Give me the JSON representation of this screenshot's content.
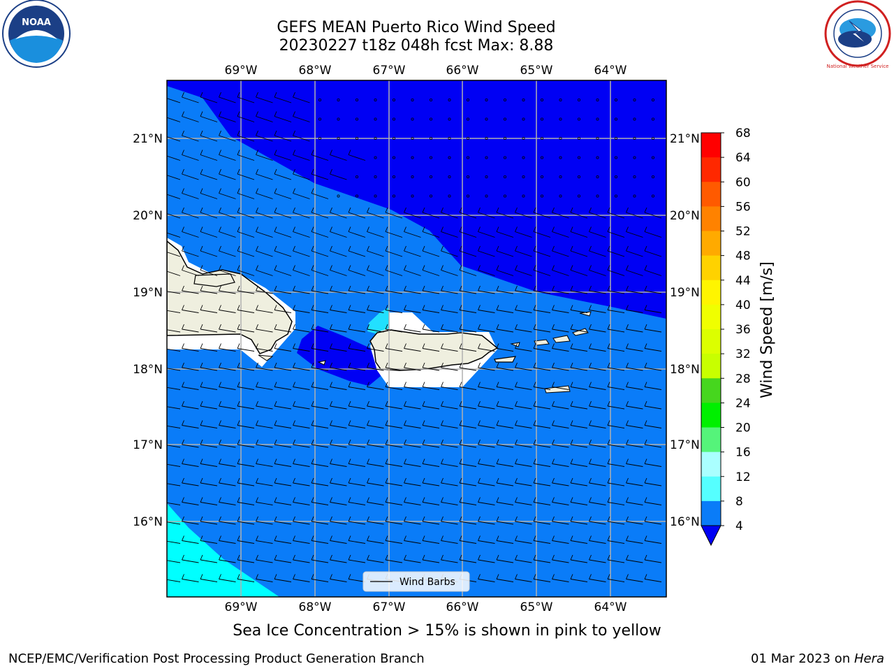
{
  "header": {
    "title_line1": "GEFS MEAN Puerto Rico Wind Speed",
    "title_line2": "20230227 t18z 048h fcst   Max: 8.88"
  },
  "logos": {
    "left": "NOAA",
    "right": "National Weather Service"
  },
  "map": {
    "lon_labels": [
      "69°W",
      "68°W",
      "67°W",
      "66°W",
      "65°W",
      "64°W"
    ],
    "lat_labels": [
      "21°N",
      "20°N",
      "19°N",
      "18°N",
      "17°N",
      "16°N"
    ],
    "legend_label": "Wind Barbs",
    "colors": {
      "sea_dark": "#0000f4",
      "sea_mid": "#0a7cf8",
      "sea_cyan": "#00ffff",
      "sea_light_cyan": "#22e0ff",
      "land": "#efefdf",
      "grid": "#b0b0b0"
    }
  },
  "colorbar": {
    "label": "Wind Speed [m/s]",
    "ticks": [
      "68",
      "64",
      "60",
      "56",
      "52",
      "48",
      "44",
      "40",
      "36",
      "32",
      "28",
      "24",
      "20",
      "16",
      "12",
      "8",
      "4"
    ],
    "colors": [
      "#ff0000",
      "#ff2800",
      "#ff5a00",
      "#ff8200",
      "#ffaa00",
      "#ffd200",
      "#fff500",
      "#f0ff00",
      "#dcff00",
      "#c8ff00",
      "#46d61e",
      "#00f000",
      "#55f47a",
      "#aaffff",
      "#55ffff",
      "#00ffff",
      "#0a7cf8"
    ],
    "under_color": "#0000f4"
  },
  "caption": "Sea Ice Concentration > 15% is shown in pink to yellow",
  "footer": {
    "left": "NCEP/EMC/Verification Post Processing Product Generation Branch",
    "date": "01 Mar 2023 on ",
    "machine": "Hera"
  }
}
